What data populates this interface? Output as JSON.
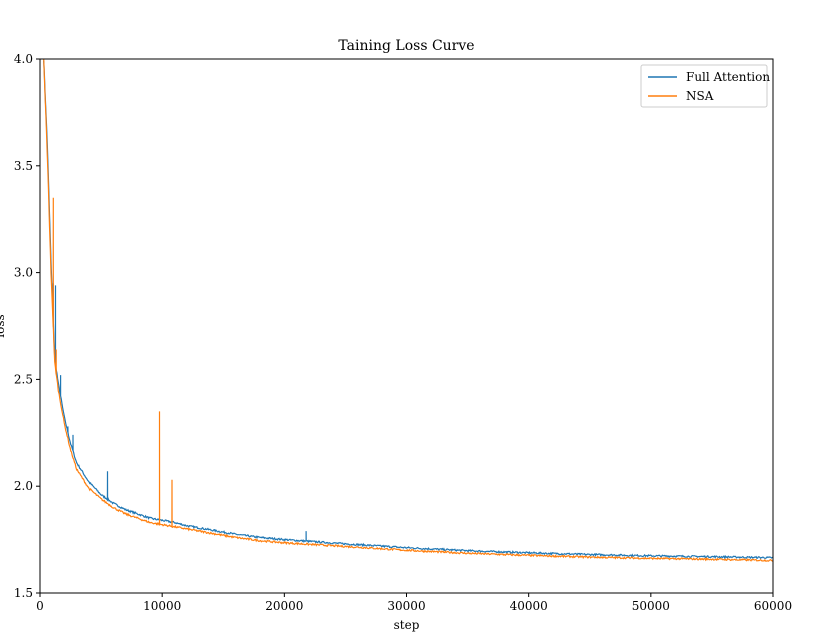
{
  "chart_data": {
    "type": "line",
    "title": "Taining Loss Curve",
    "xlabel": "step",
    "ylabel": "loss",
    "xlim": [
      0,
      60000
    ],
    "ylim": [
      1.5,
      4.0
    ],
    "xticks": [
      0,
      10000,
      20000,
      30000,
      40000,
      50000,
      60000
    ],
    "xtick_labels": [
      "0",
      "10000",
      "20000",
      "30000",
      "40000",
      "50000",
      "60000"
    ],
    "yticks": [
      1.5,
      2.0,
      2.5,
      3.0,
      3.5,
      4.0
    ],
    "ytick_labels": [
      "1.5",
      "2.0",
      "2.5",
      "3.0",
      "3.5",
      "4.0"
    ],
    "grid": false,
    "legend_position": "top-right",
    "series": [
      {
        "name": "Full Attention",
        "color": "#1f77b4",
        "x": [
          300,
          600,
          900,
          1200,
          1500,
          2000,
          2500,
          3000,
          4000,
          5000,
          6000,
          7000,
          8000,
          9000,
          10000,
          11000,
          12000,
          14000,
          16000,
          18000,
          20000,
          22000,
          25000,
          30000,
          35000,
          40000,
          45000,
          50000,
          55000,
          60000
        ],
        "y": [
          4.0,
          3.6,
          3.05,
          2.6,
          2.48,
          2.32,
          2.2,
          2.11,
          2.02,
          1.96,
          1.92,
          1.89,
          1.87,
          1.85,
          1.84,
          1.83,
          1.815,
          1.795,
          1.775,
          1.76,
          1.75,
          1.742,
          1.73,
          1.712,
          1.698,
          1.688,
          1.68,
          1.674,
          1.67,
          1.665
        ],
        "spikes": [
          {
            "x": 1100,
            "y": 2.95
          },
          {
            "x": 1250,
            "y": 2.94
          },
          {
            "x": 1700,
            "y": 2.52
          },
          {
            "x": 2300,
            "y": 2.28
          },
          {
            "x": 2700,
            "y": 2.24
          },
          {
            "x": 5500,
            "y": 2.07
          },
          {
            "x": 21800,
            "y": 1.79
          }
        ]
      },
      {
        "name": "NSA",
        "color": "#ff7f0e",
        "x": [
          300,
          600,
          900,
          1200,
          1500,
          2000,
          2500,
          3000,
          4000,
          5000,
          6000,
          7000,
          8000,
          9000,
          10000,
          11000,
          12000,
          14000,
          16000,
          18000,
          20000,
          22000,
          25000,
          30000,
          35000,
          40000,
          45000,
          50000,
          55000,
          60000
        ],
        "y": [
          4.0,
          3.55,
          3.0,
          2.58,
          2.45,
          2.29,
          2.17,
          2.08,
          1.99,
          1.94,
          1.9,
          1.87,
          1.85,
          1.83,
          1.82,
          1.81,
          1.8,
          1.78,
          1.76,
          1.745,
          1.735,
          1.728,
          1.718,
          1.7,
          1.686,
          1.676,
          1.668,
          1.662,
          1.658,
          1.652
        ],
        "spikes": [
          {
            "x": 1100,
            "y": 3.35
          },
          {
            "x": 1300,
            "y": 2.64
          },
          {
            "x": 9800,
            "y": 2.35
          },
          {
            "x": 10800,
            "y": 2.03
          }
        ]
      }
    ]
  }
}
